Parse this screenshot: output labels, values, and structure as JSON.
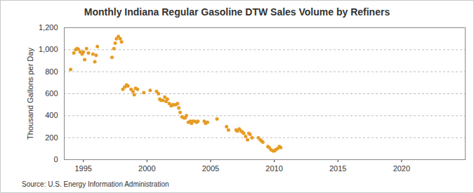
{
  "chart_data": {
    "type": "scatter",
    "title": "Monthly Indiana Regular Gasoline DTW Sales Volume by Refiners",
    "y_label": "Thousand Gallons per Day",
    "source": "Source: U.S. Energy Information Administration",
    "color": "#e69c24",
    "marker": "circle",
    "grid": true,
    "x": [
      1994.0,
      1994.25,
      1994.4,
      1994.5,
      1994.6,
      1994.75,
      1994.9,
      1995.0,
      1995.1,
      1995.25,
      1995.4,
      1995.75,
      1995.9,
      1996.0,
      1996.1,
      1997.25,
      1997.4,
      1997.5,
      1997.6,
      1997.75,
      1997.9,
      1998.0,
      1998.1,
      1998.25,
      1998.4,
      1998.5,
      1998.75,
      1998.9,
      1999.0,
      1999.1,
      1999.25,
      1999.75,
      2000.25,
      2000.75,
      2000.9,
      2001.0,
      2001.1,
      2001.25,
      2001.4,
      2001.5,
      2001.6,
      2001.75,
      2001.9,
      2002.0,
      2002.1,
      2002.25,
      2002.4,
      2002.5,
      2002.6,
      2002.75,
      2002.9,
      2003.0,
      2003.1,
      2003.25,
      2003.4,
      2003.5,
      2003.6,
      2003.75,
      2003.9,
      2004.0,
      2004.5,
      2004.6,
      2004.75,
      2005.5,
      2006.25,
      2006.4,
      2007.0,
      2007.1,
      2007.25,
      2007.4,
      2007.5,
      2007.6,
      2007.75,
      2007.9,
      2008.0,
      2008.1,
      2008.25,
      2008.75,
      2008.9,
      2009.0,
      2009.1,
      2009.5,
      2009.6,
      2009.75,
      2009.9,
      2010.0,
      2010.1,
      2010.25,
      2010.4,
      2010.5
    ],
    "values": [
      820,
      970,
      1000,
      1010,
      1005,
      980,
      960,
      980,
      910,
      1010,
      970,
      960,
      890,
      950,
      1030,
      930,
      1010,
      1060,
      1100,
      1120,
      1100,
      1070,
      640,
      660,
      680,
      670,
      640,
      620,
      590,
      650,
      640,
      610,
      630,
      620,
      600,
      550,
      540,
      540,
      570,
      530,
      550,
      510,
      490,
      500,
      500,
      500,
      510,
      470,
      430,
      390,
      380,
      380,
      400,
      340,
      350,
      330,
      350,
      350,
      340,
      350,
      350,
      330,
      340,
      370,
      300,
      270,
      270,
      260,
      280,
      260,
      250,
      240,
      210,
      180,
      240,
      230,
      200,
      200,
      180,
      170,
      160,
      120,
      110,
      90,
      80,
      80,
      90,
      100,
      120,
      110
    ],
    "xlim": [
      1993.5,
      2025
    ],
    "xticks": [
      1995,
      2000,
      2005,
      2010,
      2015,
      2020
    ],
    "ylim": [
      0,
      1200
    ],
    "yticks": [
      0,
      200,
      400,
      600,
      800,
      {
        "value": 1000,
        "label": "1,000"
      },
      {
        "value": 1200,
        "label": "1,200"
      }
    ]
  }
}
